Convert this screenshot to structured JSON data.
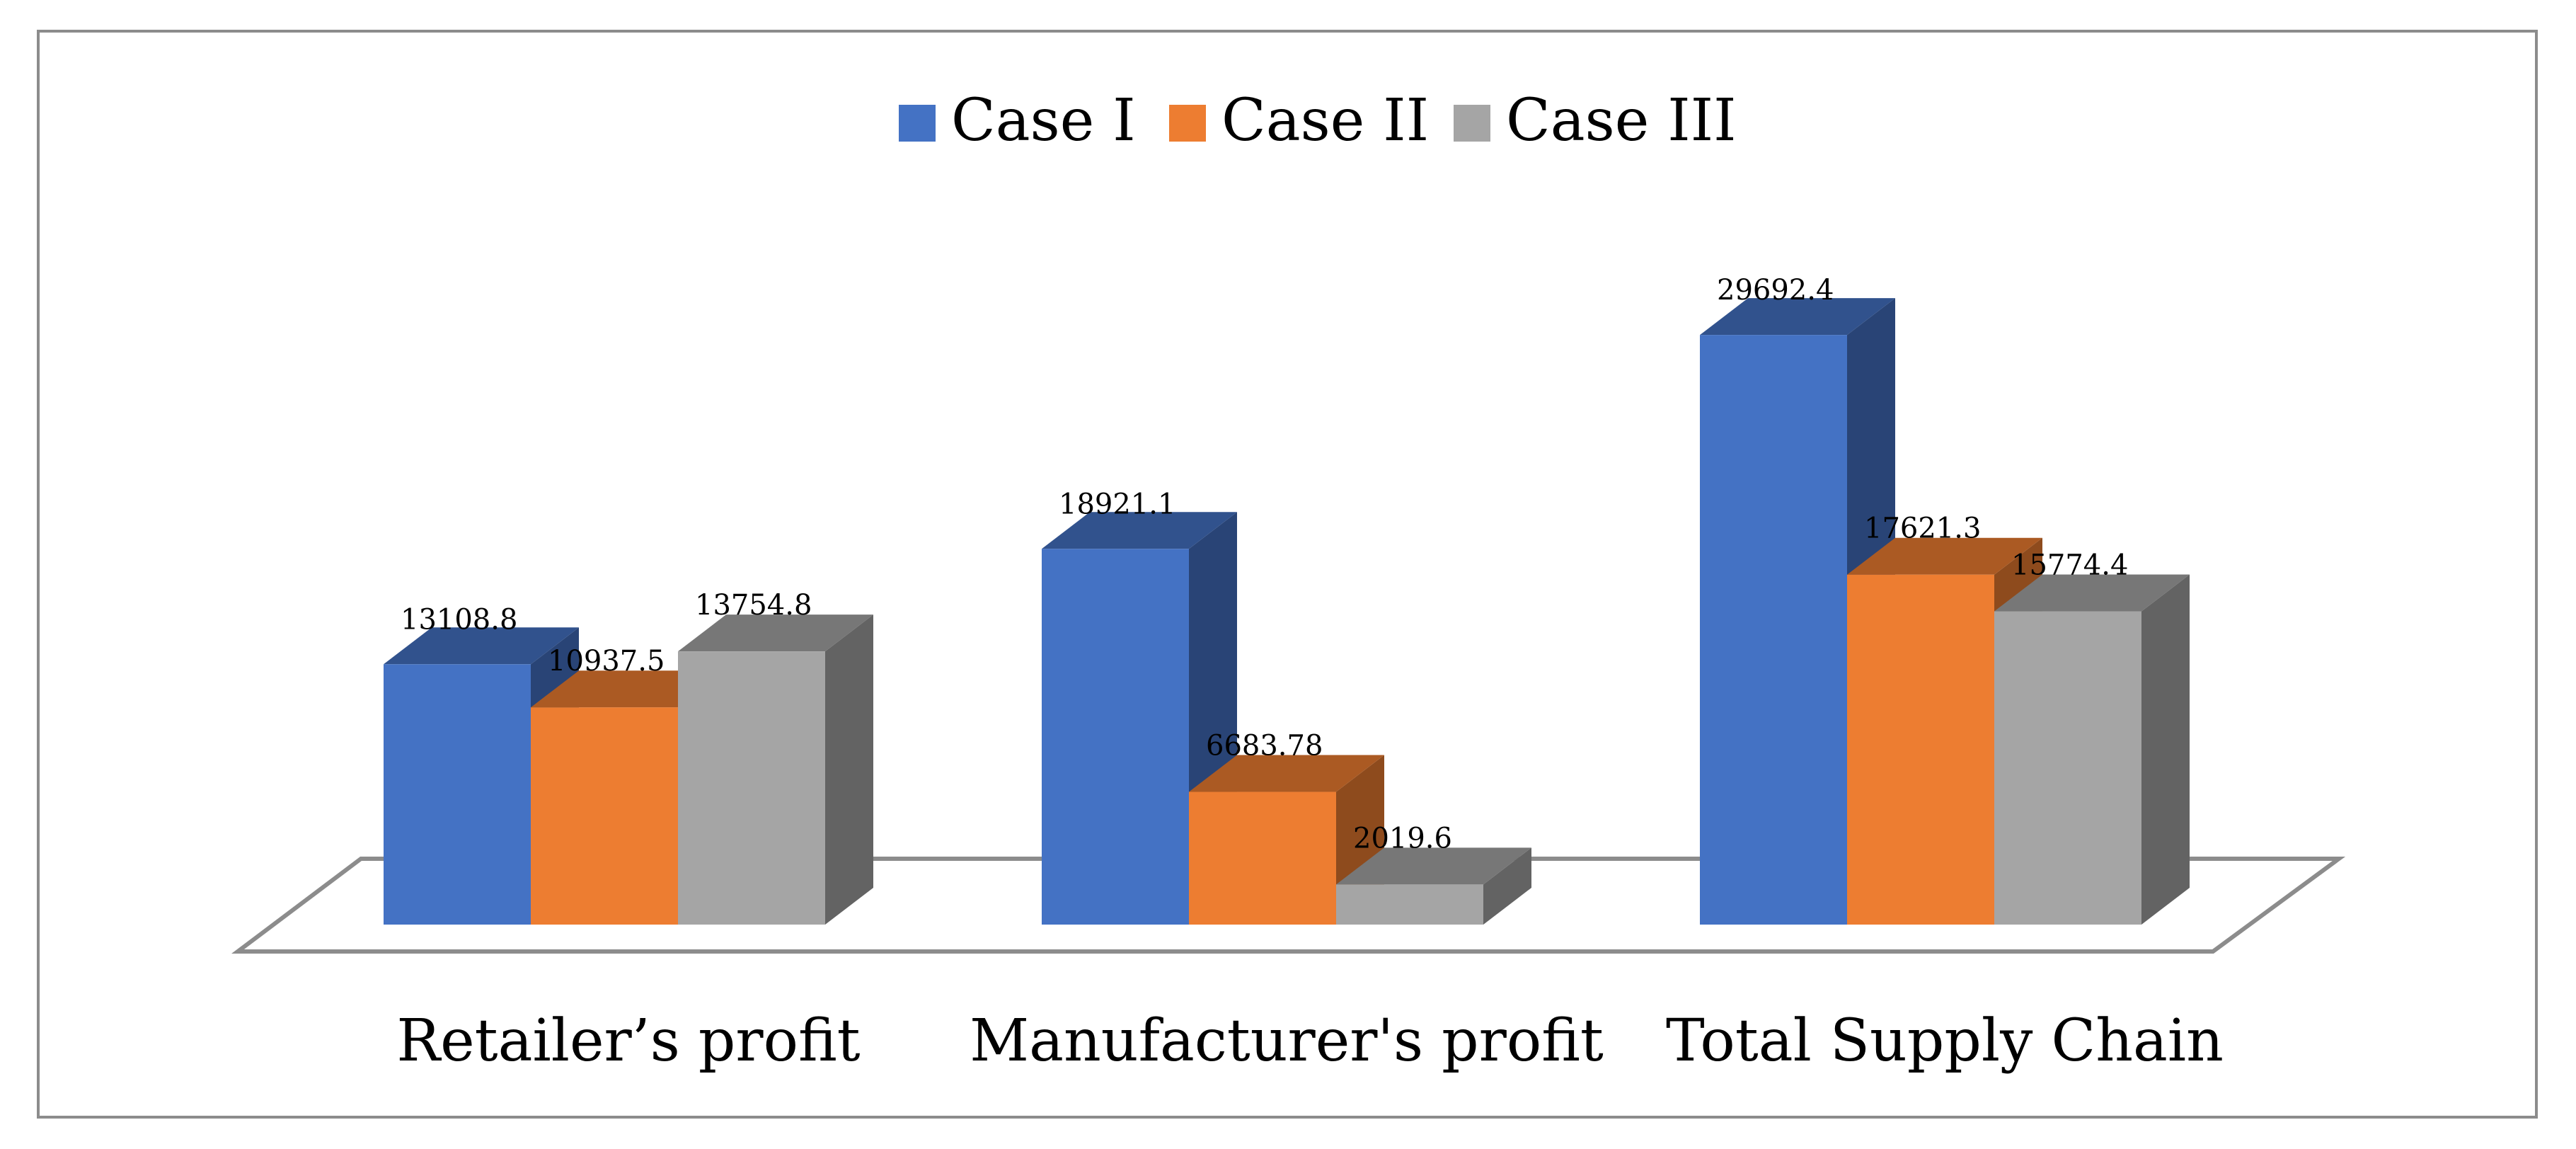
{
  "chart_data": {
    "type": "bar",
    "style": "3d-clustered-column",
    "categories": [
      "Retailer’s profit",
      "Manufacturer's profit",
      "Total Supply Chain"
    ],
    "series": [
      {
        "name": "Case I",
        "color": "#4472c4",
        "values": [
          13108.8,
          18921.1,
          29692.4
        ],
        "labels": [
          "13108.8",
          "18921.1",
          "29692.4"
        ]
      },
      {
        "name": "Case II",
        "color": "#ed7d31",
        "values": [
          10937.5,
          6683.78,
          17621.3
        ],
        "labels": [
          "10937.5",
          "6683.78",
          "17621.3"
        ]
      },
      {
        "name": "Case III",
        "color": "#a5a5a5",
        "values": [
          13754.8,
          2019.6,
          15774.4
        ],
        "labels": [
          "13754.8",
          "2019.6",
          "15774.4"
        ]
      }
    ],
    "legend": "top-center",
    "grid": false,
    "ylim": [
      0,
      30000
    ]
  }
}
